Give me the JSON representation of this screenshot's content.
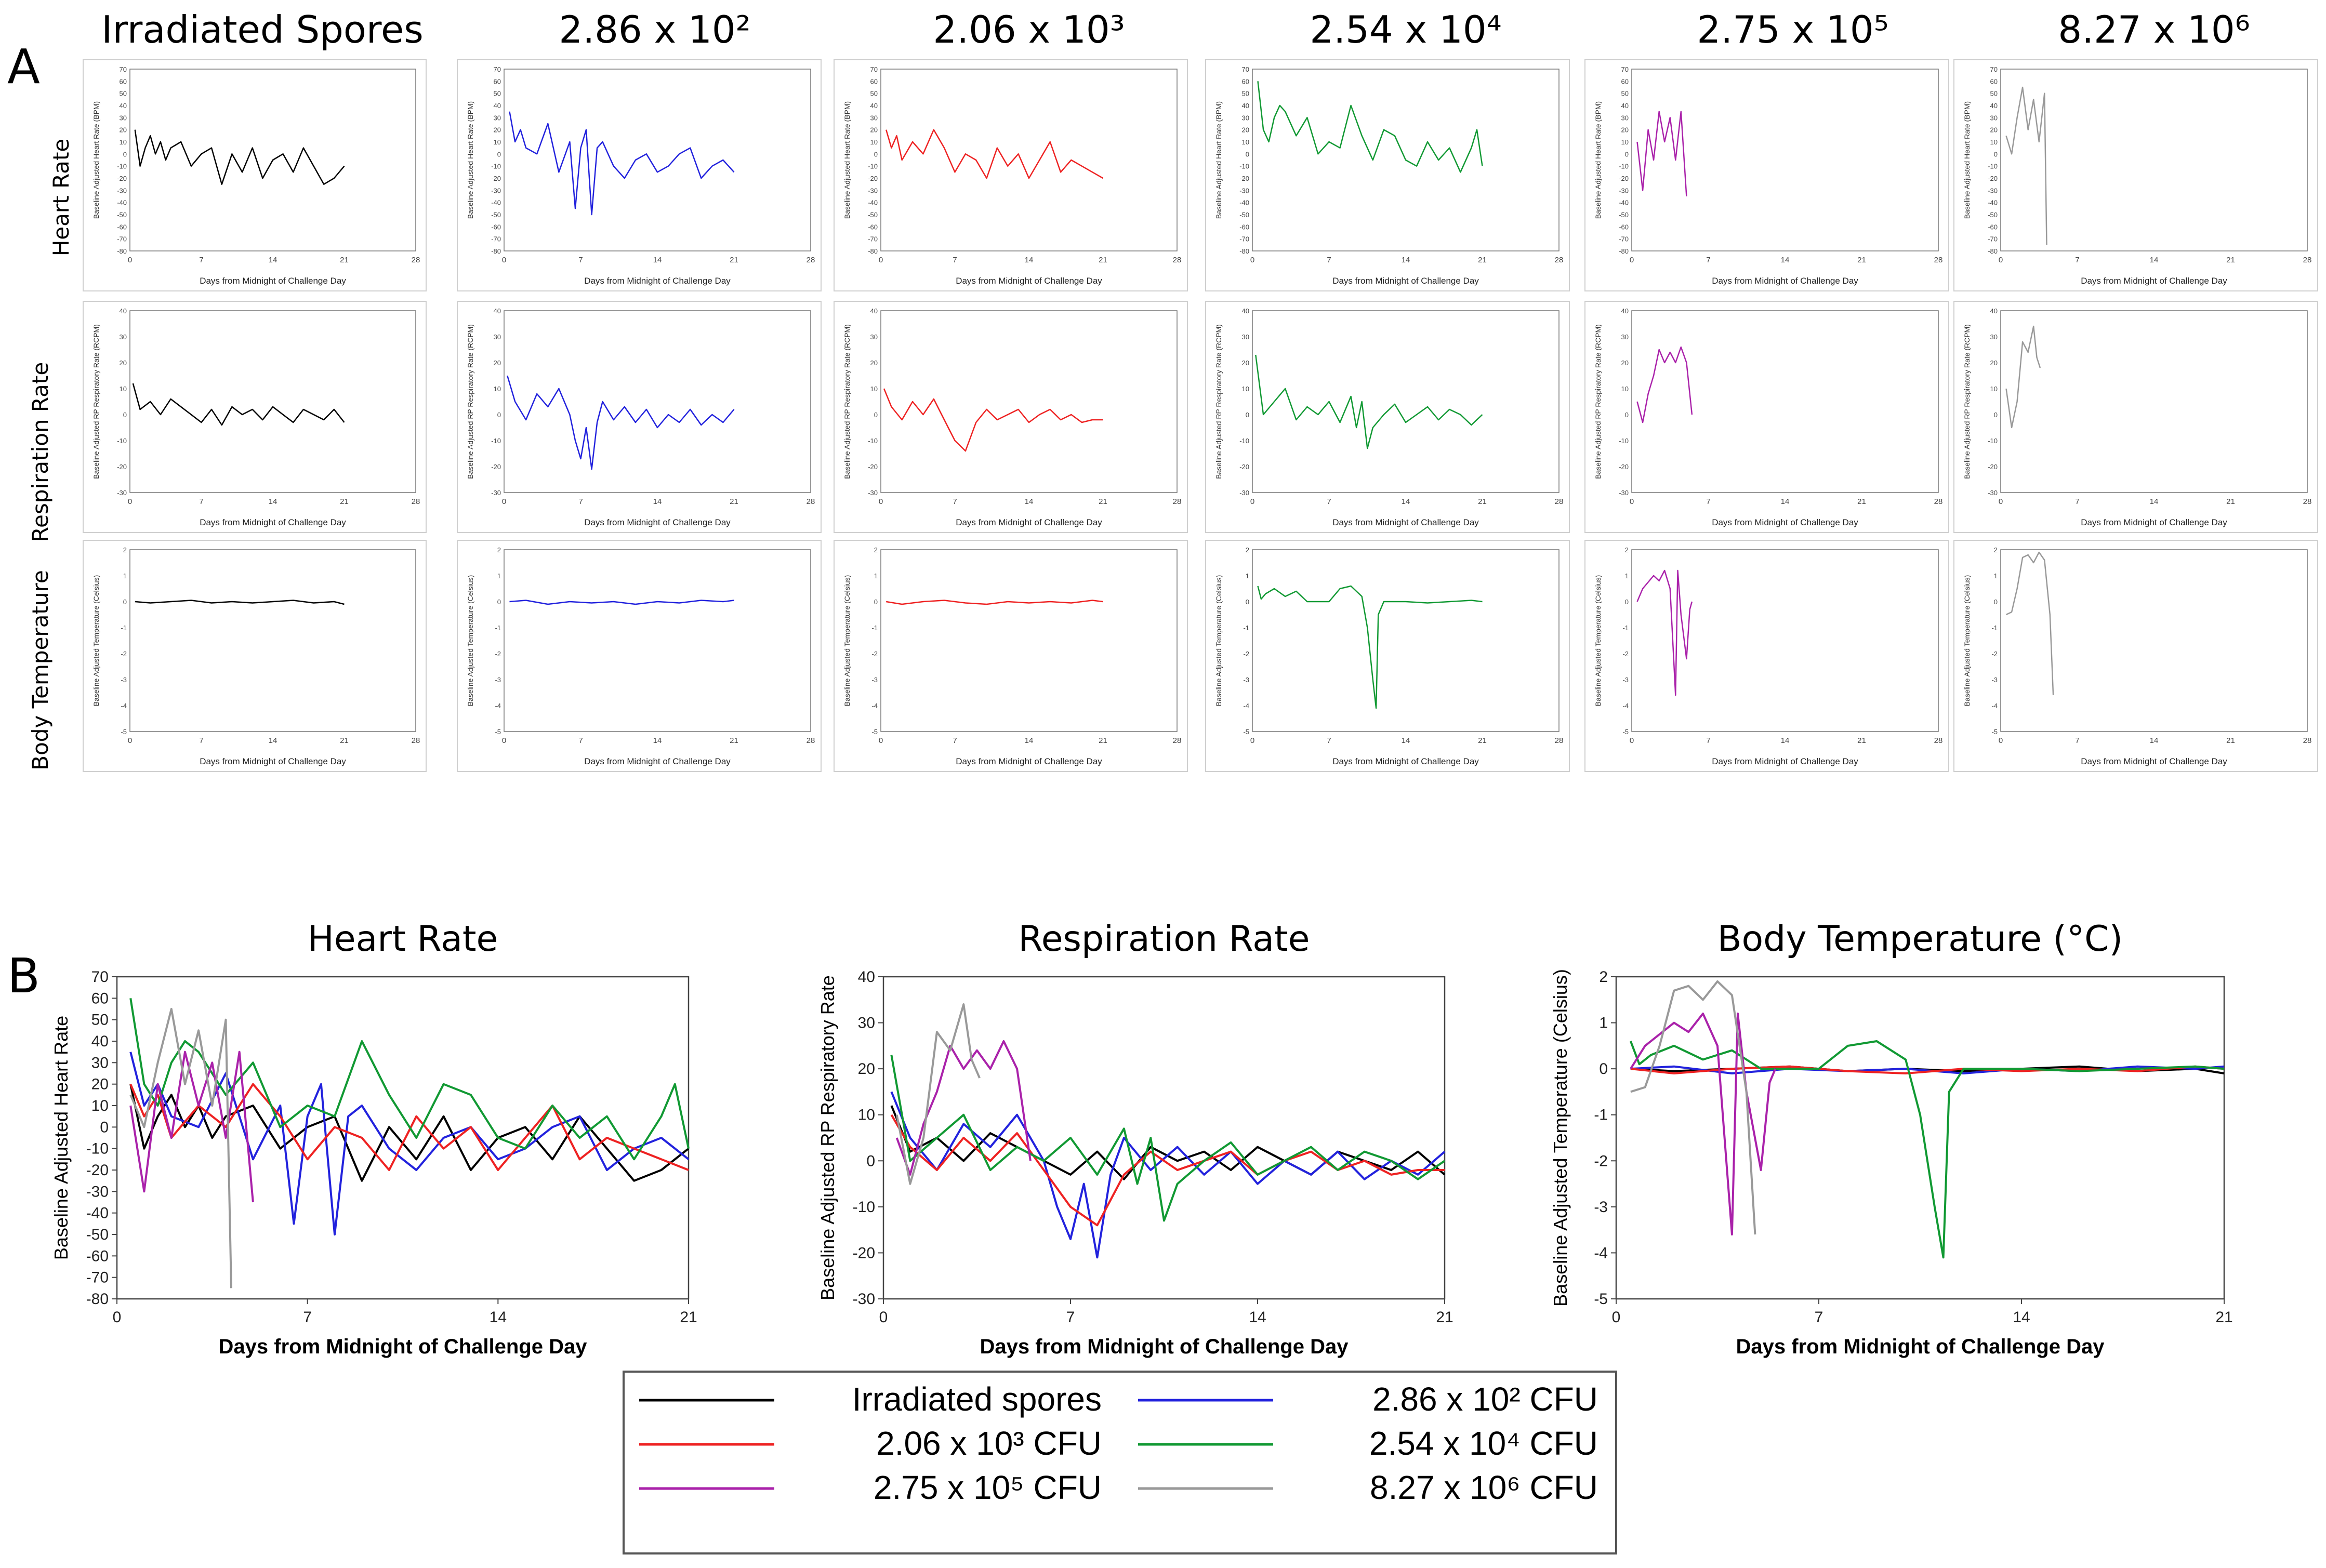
{
  "figure": {
    "panelA_label": "A",
    "panelB_label": "B",
    "row_labels": [
      "Heart Rate",
      "Respiration Rate",
      "Body Temperature"
    ],
    "column_headers": [
      "Irradiated Spores",
      "2.86 x 10²",
      "2.06 x 10³",
      "2.54 x 10⁴",
      "2.75 x 10⁵",
      "8.27 x 10⁶"
    ],
    "small_xlabel": "Days from Midnight of Challenge Day",
    "small_ylabels": [
      "Baseline Adjusted Heart Rate (BPM)",
      "Baseline Adjusted RP Respiratory Rate (RCPM)",
      "Baseline Adjusted Temperature (Celsius)"
    ]
  },
  "colors": {
    "irradiated": "#000000",
    "d286e2": "#2222dd",
    "d206e3": "#ee2222",
    "d254e4": "#119933",
    "d275e5": "#aa22aa",
    "d827e6": "#999999"
  },
  "legend": {
    "entries": [
      {
        "label": "Irradiated spores",
        "color": "#000000"
      },
      {
        "label": "2.86 x 10² CFU",
        "color": "#2222dd"
      },
      {
        "label": "2.06 x 10³ CFU",
        "color": "#ee2222"
      },
      {
        "label": "2.54 x 10⁴ CFU",
        "color": "#119933"
      },
      {
        "label": "2.75 x 10⁵ CFU",
        "color": "#aa22aa"
      },
      {
        "label": "8.27 x 10⁶ CFU",
        "color": "#999999"
      }
    ]
  },
  "chart_data": [
    {
      "type": "line",
      "title": "Heart Rate",
      "xlabel": "Days from Midnight of Challenge Day",
      "ylabel": "Baseline Adjusted Heart Rate",
      "xlim": [
        0,
        21
      ],
      "ylim": [
        -80,
        70
      ],
      "xticks": [
        7,
        14,
        21
      ],
      "yticks": [
        70,
        60,
        50,
        40,
        30,
        20,
        10,
        0,
        -10,
        -20,
        -30,
        -40,
        -50,
        -60,
        -70,
        -80
      ],
      "series": [
        {
          "name": "Irradiated spores",
          "x": [
            0.5,
            1,
            1.5,
            2,
            2.5,
            3,
            3.5,
            4,
            5,
            6,
            7,
            8,
            9,
            10,
            11,
            12,
            13,
            14,
            15,
            16,
            17,
            18,
            19,
            20,
            21
          ],
          "values": [
            20,
            -10,
            5,
            15,
            0,
            10,
            -5,
            5,
            10,
            -10,
            0,
            5,
            -25,
            0,
            -15,
            5,
            -20,
            -5,
            0,
            -15,
            5,
            -10,
            -25,
            -20,
            -10
          ]
        },
        {
          "name": "2.86 x 10² CFU",
          "x": [
            0.5,
            1,
            1.5,
            2,
            3,
            4,
            5,
            6,
            6.5,
            7,
            7.5,
            8,
            8.5,
            9,
            10,
            11,
            12,
            13,
            14,
            15,
            16,
            17,
            18,
            19,
            20,
            21
          ],
          "values": [
            35,
            10,
            20,
            5,
            0,
            25,
            -15,
            10,
            -45,
            5,
            20,
            -50,
            5,
            10,
            -10,
            -20,
            -5,
            0,
            -15,
            -10,
            0,
            5,
            -20,
            -10,
            -5,
            -15
          ]
        },
        {
          "name": "2.06 x 10³ CFU",
          "x": [
            0.5,
            1,
            1.5,
            2,
            3,
            4,
            5,
            6,
            7,
            8,
            9,
            10,
            11,
            12,
            13,
            14,
            15,
            16,
            17,
            18,
            19,
            20,
            21
          ],
          "values": [
            20,
            5,
            15,
            -5,
            10,
            0,
            20,
            5,
            -15,
            0,
            -5,
            -20,
            5,
            -10,
            0,
            -20,
            -5,
            10,
            -15,
            -5,
            -10,
            -15,
            -20
          ]
        },
        {
          "name": "2.54 x 10⁴ CFU",
          "x": [
            0.5,
            1,
            1.5,
            2,
            2.5,
            3,
            4,
            5,
            6,
            7,
            8,
            9,
            10,
            11,
            12,
            13,
            14,
            15,
            16,
            17,
            18,
            19,
            20,
            20.5,
            21
          ],
          "values": [
            60,
            20,
            10,
            30,
            40,
            35,
            15,
            30,
            0,
            10,
            5,
            40,
            15,
            -5,
            20,
            15,
            -5,
            -10,
            10,
            -5,
            5,
            -15,
            5,
            20,
            -10
          ]
        },
        {
          "name": "2.75 x 10⁵ CFU",
          "x": [
            0.5,
            1,
            1.5,
            2,
            2.5,
            3,
            3.5,
            4,
            4.5,
            5
          ],
          "values": [
            10,
            -30,
            20,
            -5,
            35,
            10,
            30,
            -5,
            35,
            -35
          ]
        },
        {
          "name": "8.27 x 10⁶ CFU",
          "x": [
            0.5,
            1,
            1.5,
            2,
            2.5,
            3,
            3.5,
            4,
            4.2
          ],
          "values": [
            15,
            0,
            30,
            55,
            20,
            45,
            10,
            50,
            -75
          ]
        }
      ]
    },
    {
      "type": "line",
      "title": "Respiration Rate",
      "xlabel": "Days from Midnight of Challenge Day",
      "ylabel": "Baseline Adjusted RP Respiratory Rate",
      "xlim": [
        0,
        21
      ],
      "ylim": [
        -30,
        40
      ],
      "xticks": [
        7,
        14,
        21
      ],
      "yticks": [
        40,
        30,
        20,
        10,
        0,
        -10,
        -20,
        -30
      ],
      "series": [
        {
          "name": "Irradiated spores",
          "x": [
            0.3,
            1,
            2,
            3,
            4,
            5,
            6,
            7,
            8,
            9,
            10,
            11,
            12,
            13,
            14,
            15,
            16,
            17,
            18,
            19,
            20,
            21
          ],
          "values": [
            12,
            2,
            5,
            0,
            6,
            3,
            0,
            -3,
            2,
            -4,
            3,
            0,
            2,
            -2,
            3,
            0,
            -3,
            2,
            0,
            -2,
            2,
            -3
          ]
        },
        {
          "name": "2.86 x 10² CFU",
          "x": [
            0.3,
            1,
            2,
            3,
            4,
            5,
            6,
            6.5,
            7,
            7.5,
            8,
            8.5,
            9,
            10,
            11,
            12,
            13,
            14,
            15,
            16,
            17,
            18,
            19,
            20,
            21
          ],
          "values": [
            15,
            5,
            -2,
            8,
            3,
            10,
            0,
            -10,
            -17,
            -5,
            -21,
            -3,
            5,
            -2,
            3,
            -3,
            2,
            -5,
            0,
            -3,
            2,
            -4,
            0,
            -3,
            2
          ]
        },
        {
          "name": "2.06 x 10³ CFU",
          "x": [
            0.3,
            1,
            2,
            3,
            4,
            5,
            6,
            7,
            8,
            9,
            10,
            11,
            12,
            13,
            14,
            15,
            16,
            17,
            18,
            19,
            20,
            21
          ],
          "values": [
            10,
            3,
            -2,
            5,
            0,
            6,
            -2,
            -10,
            -14,
            -3,
            2,
            -2,
            0,
            2,
            -3,
            0,
            2,
            -2,
            0,
            -3,
            -2,
            -2
          ]
        },
        {
          "name": "2.54 x 10⁴ CFU",
          "x": [
            0.3,
            1,
            2,
            3,
            4,
            5,
            6,
            7,
            8,
            9,
            9.5,
            10,
            10.5,
            11,
            12,
            13,
            14,
            15,
            16,
            17,
            18,
            19,
            20,
            21
          ],
          "values": [
            23,
            0,
            5,
            10,
            -2,
            3,
            0,
            5,
            -3,
            7,
            -5,
            5,
            -13,
            -5,
            0,
            4,
            -3,
            0,
            3,
            -2,
            2,
            0,
            -4,
            0
          ]
        },
        {
          "name": "2.75 x 10⁵ CFU",
          "x": [
            0.5,
            1,
            1.5,
            2,
            2.5,
            3,
            3.5,
            4,
            4.5,
            5,
            5.5
          ],
          "values": [
            5,
            -3,
            8,
            15,
            25,
            20,
            24,
            20,
            26,
            20,
            0
          ]
        },
        {
          "name": "8.27 x 10⁶ CFU",
          "x": [
            0.5,
            1,
            1.5,
            2,
            2.5,
            3,
            3.3,
            3.6
          ],
          "values": [
            10,
            -5,
            5,
            28,
            24,
            34,
            22,
            18
          ]
        }
      ]
    },
    {
      "type": "line",
      "title": "Body Temperature (°C)",
      "xlabel": "Days from Midnight of Challenge Day",
      "ylabel": "Baseline Adjusted Temperature (Celsius)",
      "xlim": [
        0,
        21
      ],
      "ylim": [
        -5,
        2
      ],
      "xticks": [
        7,
        14,
        21
      ],
      "yticks": [
        2,
        1,
        0,
        -1,
        -2,
        -3,
        -4,
        -5
      ],
      "series": [
        {
          "name": "Irradiated spores",
          "x": [
            0.5,
            2,
            4,
            6,
            8,
            10,
            12,
            14,
            16,
            18,
            20,
            21
          ],
          "values": [
            0,
            -0.05,
            0,
            0.05,
            -0.05,
            0,
            -0.05,
            0,
            0.05,
            -0.05,
            0,
            -0.1
          ]
        },
        {
          "name": "2.86 x 10² CFU",
          "x": [
            0.5,
            2,
            4,
            6,
            8,
            10,
            12,
            14,
            16,
            18,
            20,
            21
          ],
          "values": [
            0,
            0.05,
            -0.1,
            0,
            -0.05,
            0,
            -0.1,
            0,
            -0.05,
            0.05,
            0,
            0.05
          ]
        },
        {
          "name": "2.06 x 10³ CFU",
          "x": [
            0.5,
            2,
            4,
            6,
            8,
            10,
            12,
            14,
            16,
            18,
            20,
            21
          ],
          "values": [
            0,
            -0.1,
            0,
            0.05,
            -0.05,
            -0.1,
            0,
            -0.05,
            0,
            -0.05,
            0.05,
            0
          ]
        },
        {
          "name": "2.54 x 10⁴ CFU",
          "x": [
            0.5,
            0.8,
            1.2,
            2,
            3,
            4,
            5,
            6,
            7,
            8,
            9,
            10,
            10.5,
            11,
            11.3,
            11.5,
            12,
            14,
            16,
            18,
            20,
            21
          ],
          "values": [
            0.6,
            0.1,
            0.3,
            0.5,
            0.2,
            0.4,
            0,
            0,
            0,
            0.5,
            0.6,
            0.2,
            -1,
            -3,
            -4.1,
            -0.5,
            0,
            0,
            -0.05,
            0,
            0.05,
            0
          ]
        },
        {
          "name": "2.75 x 10⁵ CFU",
          "x": [
            0.5,
            1,
            2,
            2.5,
            3,
            3.5,
            4,
            4.2,
            4.5,
            5,
            5.3,
            5.5
          ],
          "values": [
            0,
            0.5,
            1,
            0.8,
            1.2,
            0.5,
            -3.6,
            1.2,
            -0.5,
            -2.2,
            -0.3,
            0
          ]
        },
        {
          "name": "8.27 x 10⁶ CFU",
          "x": [
            0.5,
            1,
            1.5,
            2,
            2.5,
            3,
            3.5,
            4,
            4.5,
            4.8
          ],
          "values": [
            -0.5,
            -0.4,
            0.5,
            1.7,
            1.8,
            1.5,
            1.9,
            1.6,
            -0.5,
            -3.6
          ]
        }
      ]
    }
  ]
}
